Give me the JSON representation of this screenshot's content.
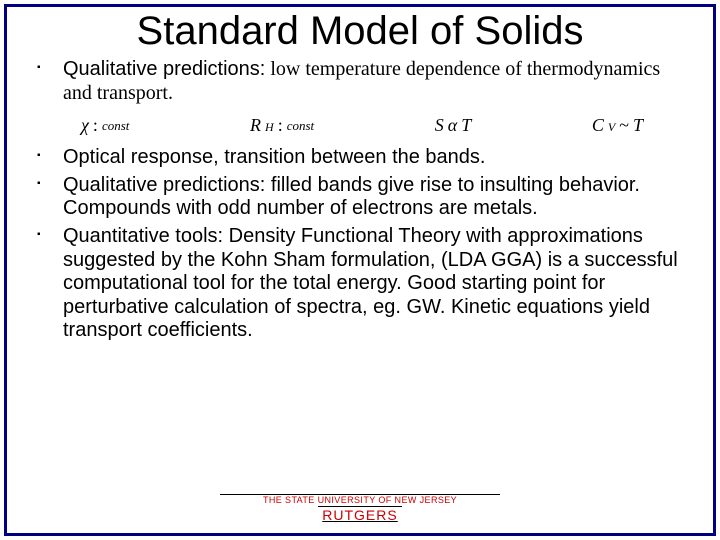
{
  "title": "Standard Model of Solids",
  "bullets1": [
    {
      "prefix": "Qualitative predictions:",
      "rest": " low temperature dependence of thermodynamics and transport."
    }
  ],
  "equations": {
    "chi": {
      "sym": "χ",
      "sep": ":",
      "txt": "const"
    },
    "rh": {
      "sym": "R",
      "sub": "H",
      "sep": ":",
      "txt": "const"
    },
    "s": {
      "sym": "S",
      "rel": "α",
      "rhs": "T"
    },
    "cv": {
      "sym": "C",
      "sub": "V",
      "rel": "~",
      "rhs": "T"
    }
  },
  "bullets2": [
    "Optical response, transition between the bands.",
    "Qualitative predictions: filled  bands give rise to insulting behavior. Compounds with odd number of electrons are metals.",
    "Quantitative tools: Density Functional Theory  with approximations suggested by the Kohn Sham formulation, (LDA GGA) is a successful computational tool for the total energy. Good starting point for perturbative calculation of spectra, eg. GW.  Kinetic equations yield transport coefficients."
  ],
  "footer": {
    "line1": "THE STATE UNIVERSITY OF NEW JERSEY",
    "line2": "RUTGERS"
  },
  "colors": {
    "frame": "#000080",
    "footer_text": "#cc0000",
    "body_text": "#000000",
    "background": "#ffffff"
  }
}
